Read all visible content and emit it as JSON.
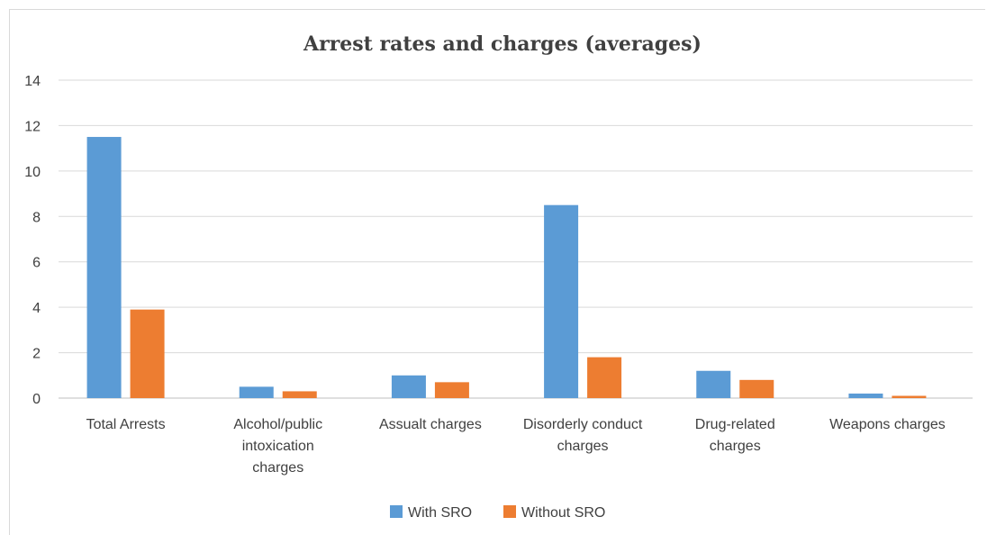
{
  "chart_data": {
    "type": "bar",
    "title": "Arrest rates and charges (averages)",
    "xlabel": "",
    "ylabel": "",
    "ylim": [
      0,
      14
    ],
    "yticks": [
      0,
      2,
      4,
      6,
      8,
      10,
      12,
      14
    ],
    "grid": true,
    "legend_position": "bottom",
    "categories": [
      [
        "Total Arrests"
      ],
      [
        "Alcohol/public",
        "intoxication",
        "charges"
      ],
      [
        "Assualt charges"
      ],
      [
        "Disorderly conduct",
        "charges"
      ],
      [
        "Drug-related",
        "charges"
      ],
      [
        "Weapons charges"
      ]
    ],
    "series": [
      {
        "name": "With SRO",
        "color": "#5b9bd5",
        "values": [
          11.5,
          0.5,
          1.0,
          8.5,
          1.2,
          0.2
        ]
      },
      {
        "name": "Without SRO",
        "color": "#ed7d31",
        "values": [
          3.9,
          0.3,
          0.7,
          1.8,
          0.8,
          0.1
        ]
      }
    ]
  }
}
